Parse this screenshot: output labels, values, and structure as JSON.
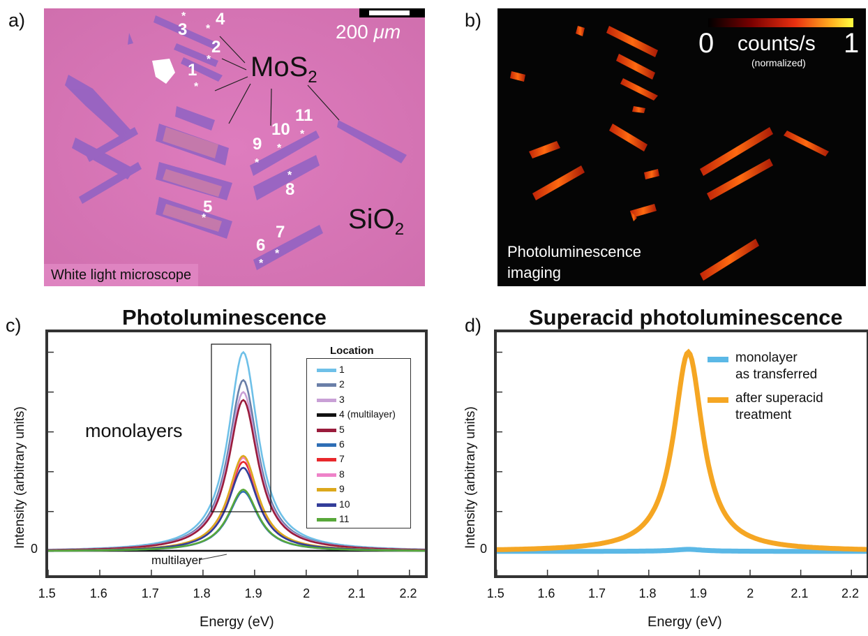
{
  "panels": {
    "a": {
      "label": "a)",
      "scale_bar_label": "200",
      "scale_bar_unit": "μm",
      "material_label": "MoS",
      "material_sub": "2",
      "substrate_label": "SiO",
      "substrate_sub": "2",
      "caption": "White light microscope",
      "locations": [
        "1",
        "2",
        "3",
        "4",
        "5",
        "6",
        "7",
        "8",
        "9",
        "10",
        "11"
      ]
    },
    "b": {
      "label": "b)",
      "colorbar_min": "0",
      "colorbar_max": "1",
      "colorbar_label": "counts/s",
      "colorbar_sublabel": "(normalized)",
      "caption_line1": "Photoluminescence",
      "caption_line2": "imaging"
    },
    "c": {
      "label": "c)",
      "annotation_monolayers": "monolayers",
      "annotation_multilayer": "multilayer",
      "legend_title": "Location"
    },
    "d": {
      "label": "d)"
    }
  },
  "chart_data": [
    {
      "type": "line",
      "title": "Photoluminescence",
      "xlabel": "Energy (eV)",
      "ylabel": "Intensity (arbitrary units)",
      "xlim": [
        1.5,
        2.23
      ],
      "ylim": [
        -0.12,
        1.1
      ],
      "x_ticks": [
        "1.5",
        "1.6",
        "1.7",
        "1.8",
        "1.9",
        "2",
        "2.1",
        "2.2"
      ],
      "y_tick_label": "0",
      "peak_model": {
        "center": 1.878,
        "width": 0.035
      },
      "series": [
        {
          "name": "1",
          "color": "#6ec0e8",
          "peak": 1.0
        },
        {
          "name": "2",
          "color": "#6a7fa8",
          "peak": 0.86
        },
        {
          "name": "3",
          "color": "#c9a0d6",
          "peak": 0.8
        },
        {
          "name": "4 (multilayer)",
          "color": "#111111",
          "peak": 0.0
        },
        {
          "name": "5",
          "color": "#9a1c3c",
          "peak": 0.76
        },
        {
          "name": "6",
          "color": "#2e6eb5",
          "peak": 0.3
        },
        {
          "name": "7",
          "color": "#e8282c",
          "peak": 0.45
        },
        {
          "name": "8",
          "color": "#ee82c8",
          "peak": 0.47
        },
        {
          "name": "9",
          "color": "#dca81c",
          "peak": 0.48
        },
        {
          "name": "10",
          "color": "#333d99",
          "peak": 0.42
        },
        {
          "name": "11",
          "color": "#58a83a",
          "peak": 0.31
        }
      ]
    },
    {
      "type": "line",
      "title": "Superacid photoluminescence",
      "xlabel": "Energy (eV)",
      "ylabel": "Intensity (arbitrary units)",
      "xlim": [
        1.5,
        2.23
      ],
      "ylim": [
        -0.12,
        1.1
      ],
      "x_ticks": [
        "1.5",
        "1.6",
        "1.7",
        "1.8",
        "1.9",
        "2",
        "2.1",
        "2.2"
      ],
      "y_tick_label": "0",
      "peak_model": {
        "center": 1.878,
        "width": 0.035
      },
      "series": [
        {
          "name": "monolayer as transferred",
          "name_lines": [
            "monolayer",
            "as transferred"
          ],
          "color": "#5bb8e6",
          "peak": 0.01
        },
        {
          "name": "after superacid treatment",
          "name_lines": [
            "after superacid",
            "treatment"
          ],
          "color": "#f5a623",
          "peak": 1.0
        }
      ]
    }
  ]
}
